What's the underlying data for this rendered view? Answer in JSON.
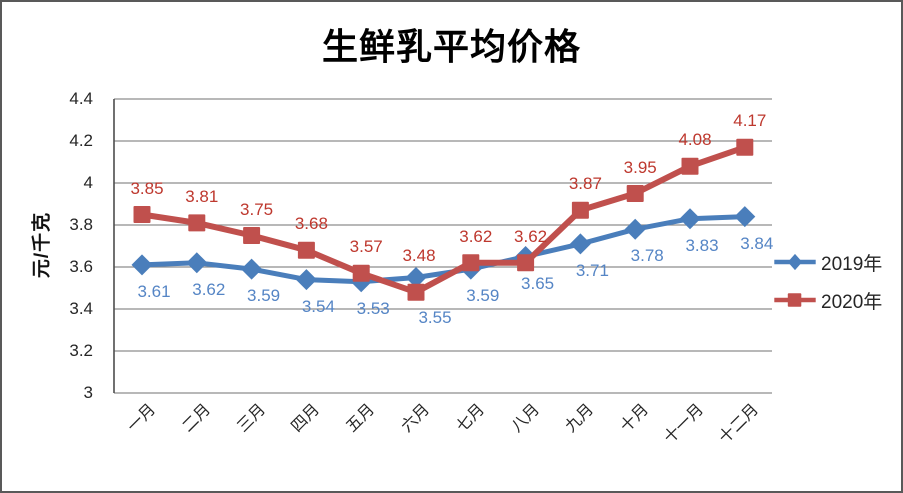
{
  "chart_data": {
    "type": "line",
    "title": "生鲜乳平均价格",
    "ylabel": "元/千克",
    "categories": [
      "一月",
      "二月",
      "三月",
      "四月",
      "五月",
      "六月",
      "七月",
      "八月",
      "九月",
      "十月",
      "十一月",
      "十二月"
    ],
    "series": [
      {
        "name": "2019年",
        "values": [
          3.61,
          3.62,
          3.59,
          3.54,
          3.53,
          3.55,
          3.59,
          3.65,
          3.71,
          3.78,
          3.83,
          3.84
        ],
        "color": "#4A7EBB",
        "label_color": "#5585C5",
        "marker": "diamond",
        "label_position": "below",
        "label_offset": {
          "dx": 12,
          "dy": 27
        },
        "label_overrides": {
          "5": {
            "dx": 19,
            "dy": 40
          }
        }
      },
      {
        "name": "2020年",
        "values": [
          3.85,
          3.81,
          3.75,
          3.68,
          3.57,
          3.48,
          3.62,
          3.62,
          3.87,
          3.95,
          4.08,
          4.17
        ],
        "color": "#C0504D",
        "label_color": "#BE382E",
        "marker": "square",
        "label_position": "above",
        "label_offset": {
          "dx": 5,
          "dy": -26
        },
        "label_overrides": {
          "5": {
            "dx": 3,
            "dy": -36
          }
        }
      }
    ],
    "ylim": [
      3,
      4.4
    ],
    "ytick_step": 0.2,
    "value_decimals": 2,
    "grid": true,
    "legend_position": "right",
    "axis_color": "#4d4d4d",
    "grid_color": "#8e8e8e",
    "tick_color": "#262626"
  }
}
